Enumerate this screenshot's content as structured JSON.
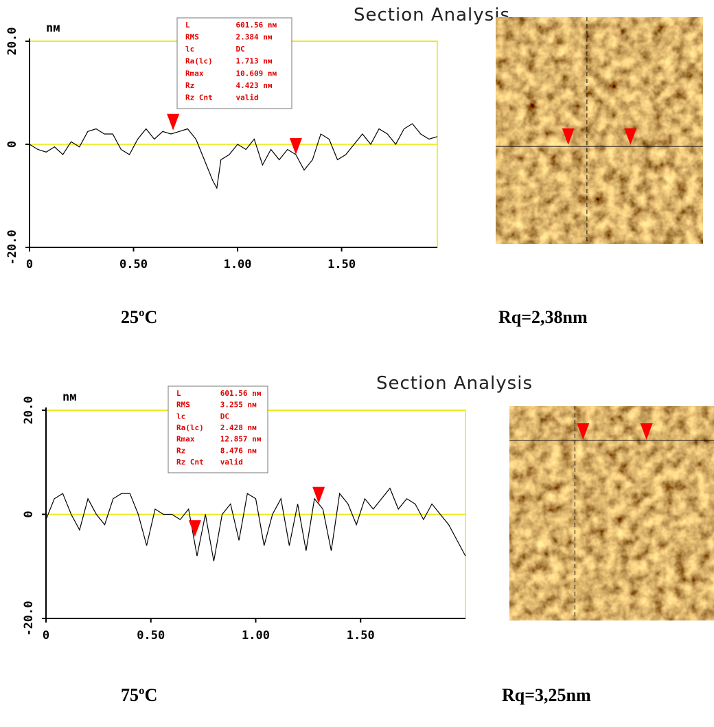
{
  "chart_data": [
    {
      "type": "line",
      "title": "Section Analysis",
      "y_unit": "nм",
      "stats": [
        [
          "L",
          "601.56 nм"
        ],
        [
          "RMS",
          "2.384 nм"
        ],
        [
          "lc",
          "DC"
        ],
        [
          "Ra(lc)",
          "1.713 nм"
        ],
        [
          "Rmax",
          "10.609 nм"
        ],
        [
          "Rz",
          "4.423 nм"
        ],
        [
          "Rz Cnt",
          "valid"
        ]
      ],
      "x": [
        0,
        0.04,
        0.08,
        0.12,
        0.16,
        0.2,
        0.24,
        0.28,
        0.32,
        0.36,
        0.4,
        0.44,
        0.48,
        0.52,
        0.56,
        0.6,
        0.64,
        0.68,
        0.72,
        0.76,
        0.8,
        0.84,
        0.88,
        0.9,
        0.92,
        0.96,
        1.0,
        1.04,
        1.08,
        1.12,
        1.16,
        1.2,
        1.24,
        1.28,
        1.32,
        1.36,
        1.4,
        1.44,
        1.48,
        1.52,
        1.56,
        1.6,
        1.64,
        1.68,
        1.72,
        1.76,
        1.8,
        1.84,
        1.88,
        1.92,
        1.96
      ],
      "values": [
        0,
        -1,
        -1.5,
        -0.5,
        -2,
        0.5,
        -0.5,
        2.5,
        3,
        2,
        2,
        -1,
        -2,
        1,
        3,
        1,
        2.5,
        2,
        2.5,
        3,
        1,
        -3,
        -7,
        -8.5,
        -3,
        -2,
        0,
        -1,
        1,
        -4,
        -1,
        -3,
        -1,
        -2,
        -5,
        -3,
        2,
        1,
        -3,
        -2,
        0,
        2,
        0,
        3,
        2,
        0,
        3,
        4,
        2,
        1,
        1.5
      ],
      "color": "#000000",
      "axis_color": "#e8e800",
      "marker_color": "#ff0000",
      "markers": {
        "x": [
          0.69,
          1.28
        ],
        "y": [
          2.7,
          -2
        ]
      },
      "xlim": [
        0,
        1.96
      ],
      "ylim": [
        -20,
        20
      ],
      "xticks": [
        0,
        {
          "value": 0.5,
          "label": "0.50"
        },
        {
          "value": 1,
          "label": "1.00"
        },
        {
          "value": 1.5,
          "label": "1.50"
        }
      ],
      "yticks": [
        {
          "value": -20,
          "label": "-20.0"
        },
        0,
        {
          "value": 20,
          "label": "20.0"
        }
      ],
      "captions": [
        "25ºC",
        "Rq=2,38nm"
      ]
    },
    {
      "type": "line",
      "title": "Section Analysis",
      "y_unit": "nм",
      "stats": [
        [
          "L",
          "601.56 nм"
        ],
        [
          "RMS",
          "3.255 nм"
        ],
        [
          "lc",
          "DC"
        ],
        [
          "Ra(lc)",
          "2.428 nм"
        ],
        [
          "Rmax",
          "12.857 nм"
        ],
        [
          "Rz",
          "8.476 nм"
        ],
        [
          "Rz Cnt",
          "valid"
        ]
      ],
      "x": [
        0,
        0.04,
        0.08,
        0.12,
        0.16,
        0.2,
        0.24,
        0.28,
        0.32,
        0.36,
        0.4,
        0.44,
        0.48,
        0.52,
        0.56,
        0.6,
        0.64,
        0.68,
        0.72,
        0.76,
        0.8,
        0.84,
        0.88,
        0.92,
        0.96,
        1.0,
        1.04,
        1.08,
        1.12,
        1.16,
        1.2,
        1.24,
        1.28,
        1.32,
        1.36,
        1.4,
        1.44,
        1.48,
        1.52,
        1.56,
        1.6,
        1.64,
        1.68,
        1.72,
        1.76,
        1.8,
        1.84,
        1.88,
        1.92,
        1.96,
        2.0
      ],
      "values": [
        -1,
        3,
        4,
        0,
        -3,
        3,
        0,
        -2,
        3,
        4,
        4,
        0,
        -6,
        1,
        0,
        0,
        -1,
        1,
        -8,
        0,
        -9,
        0,
        2,
        -5,
        4,
        3,
        -6,
        0,
        3,
        -6,
        2,
        -7,
        3,
        1,
        -7,
        4,
        2,
        -2,
        3,
        1,
        3,
        5,
        1,
        3,
        2,
        -1,
        2,
        0,
        -2,
        -5,
        -8
      ],
      "color": "#000000",
      "axis_color": "#e8e800",
      "marker_color": "#ff0000",
      "markers": {
        "x": [
          0.71,
          1.3
        ],
        "y": [
          -4.3,
          2.1
        ]
      },
      "xlim": [
        0,
        2.0
      ],
      "ylim": [
        -20,
        20
      ],
      "xticks": [
        0,
        {
          "value": 0.5,
          "label": "0.50"
        },
        {
          "value": 1,
          "label": "1.00"
        },
        {
          "value": 1.5,
          "label": "1.50"
        }
      ],
      "yticks": [
        {
          "value": -20,
          "label": "-20.0"
        },
        0,
        {
          "value": 20,
          "label": "20.0"
        }
      ],
      "captions": [
        "75ºC",
        "Rq=3,25nm"
      ]
    }
  ]
}
